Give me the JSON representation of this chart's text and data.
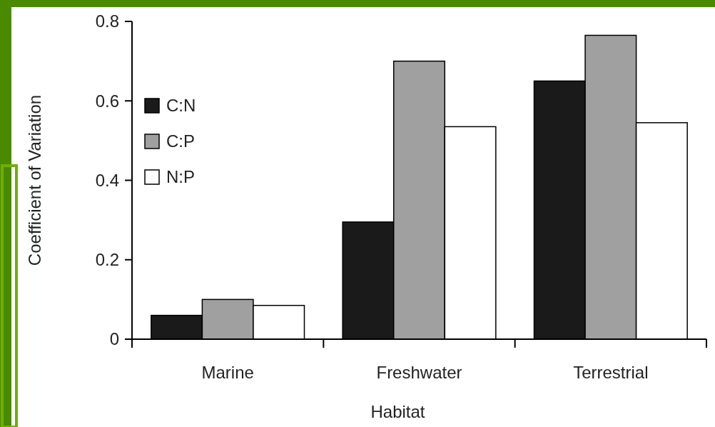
{
  "chart_data": {
    "type": "bar",
    "xlabel": "Habitat",
    "ylabel": "Coefficient of Variation",
    "categories": [
      "Marine",
      "Freshwater",
      "Terrestrial"
    ],
    "series": [
      {
        "name": "C:N",
        "color": "#1a1a1a",
        "values": [
          0.06,
          0.295,
          0.65
        ]
      },
      {
        "name": "C:P",
        "color": "#a0a0a0",
        "values": [
          0.1,
          0.7,
          0.765
        ]
      },
      {
        "name": "N:P",
        "color": "#ffffff",
        "values": [
          0.085,
          0.535,
          0.545
        ]
      }
    ],
    "ylim": [
      0,
      0.8
    ],
    "yticks": [
      {
        "value": 0,
        "label": "0"
      },
      0.2,
      0.4,
      0.6,
      0.8
    ],
    "grid": false,
    "legend": "top left"
  }
}
